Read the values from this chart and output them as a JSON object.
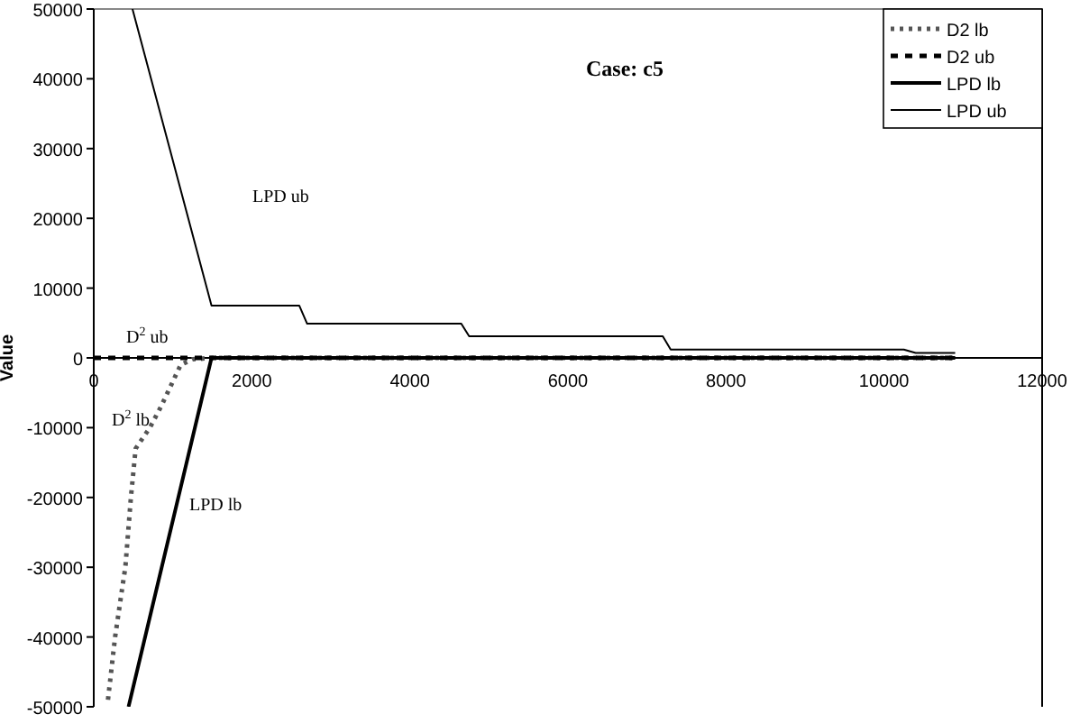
{
  "chart_data": {
    "type": "line",
    "title": "Case: c5",
    "ylabel": "Value",
    "xlim": [
      0,
      12000
    ],
    "xticks": [
      0,
      2000,
      4000,
      6000,
      8000,
      10000,
      12000
    ],
    "ylim": [
      -50000,
      50000
    ],
    "yticks": [
      -50000,
      -40000,
      -30000,
      -20000,
      -10000,
      0,
      10000,
      20000,
      30000,
      40000,
      50000
    ],
    "grid": false,
    "legend": "top right",
    "marker": "none",
    "series": [
      {
        "name": "D2 lb",
        "color": "#555555",
        "line_style": "dotted",
        "x": [
          180,
          270,
          360,
          400,
          470,
          530,
          710,
          850,
          1100,
          1250,
          1500,
          10900
        ],
        "values": [
          -49000,
          -40000,
          -33000,
          -30000,
          -20000,
          -13000,
          -10000,
          -7000,
          -1000,
          -200,
          0,
          0
        ]
      },
      {
        "name": "D2 ub",
        "color": "#000000",
        "line_style": "dashed",
        "x": [
          0,
          10900
        ],
        "values": [
          0,
          0
        ]
      },
      {
        "name": "LPD lb",
        "color": "#000000",
        "line_style": "solid",
        "x": [
          440,
          1490,
          10900
        ],
        "values": [
          -50000,
          0,
          0
        ]
      },
      {
        "name": "LPD ub",
        "color": "#000000",
        "line_style": "solid",
        "x": [
          490,
          1490,
          2600,
          2700,
          4650,
          4750,
          7200,
          7300,
          10250,
          10400,
          10900
        ],
        "values": [
          50000,
          7500,
          7500,
          4900,
          4900,
          3100,
          3100,
          1200,
          1200,
          700,
          700
        ]
      }
    ],
    "annotations": [
      "LPD ub",
      "D$^{2}$ ub",
      "D$^{2}$ lb",
      "LPD lb"
    ]
  }
}
